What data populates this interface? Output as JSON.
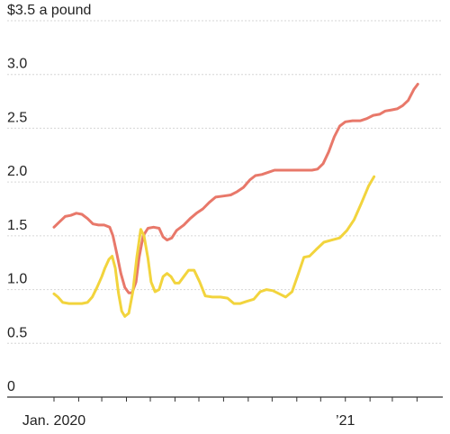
{
  "chart_data": {
    "type": "line",
    "ylim": [
      0,
      3.5
    ],
    "y_ticks": [
      {
        "value": 3.5,
        "label": "$3.5 a pound"
      },
      {
        "value": 3.0,
        "label": "3.0"
      },
      {
        "value": 2.5,
        "label": "2.5"
      },
      {
        "value": 2.0,
        "label": "2.0"
      },
      {
        "value": 1.5,
        "label": "1.5"
      },
      {
        "value": 1.0,
        "label": "1.0"
      },
      {
        "value": 0.5,
        "label": "0.5"
      },
      {
        "value": 0,
        "label": "0"
      }
    ],
    "x_range": [
      "2020-01-01",
      "2021-04-30"
    ],
    "x_ticks": [
      "2020-01-01",
      "2020-02-01",
      "2020-03-01",
      "2020-04-01",
      "2020-05-01",
      "2020-06-01",
      "2020-07-01",
      "2020-08-01",
      "2020-09-01",
      "2020-10-01",
      "2020-11-01",
      "2020-12-01",
      "2021-01-01",
      "2021-02-01",
      "2021-03-01",
      "2021-04-01"
    ],
    "x_labels": [
      {
        "date": "2020-01-01",
        "label": "Jan. 2020"
      },
      {
        "date": "2021-01-01",
        "label": "’21"
      }
    ],
    "grid": true,
    "series": [
      {
        "color": "#e8786a",
        "points": [
          [
            "2020-01-01",
            1.58
          ],
          [
            "2020-01-08",
            1.63
          ],
          [
            "2020-01-15",
            1.68
          ],
          [
            "2020-01-22",
            1.69
          ],
          [
            "2020-01-29",
            1.71
          ],
          [
            "2020-02-05",
            1.7
          ],
          [
            "2020-02-12",
            1.66
          ],
          [
            "2020-02-19",
            1.61
          ],
          [
            "2020-02-26",
            1.6
          ],
          [
            "2020-03-04",
            1.6
          ],
          [
            "2020-03-11",
            1.58
          ],
          [
            "2020-03-15",
            1.5
          ],
          [
            "2020-03-20",
            1.33
          ],
          [
            "2020-03-25",
            1.15
          ],
          [
            "2020-03-30",
            1.02
          ],
          [
            "2020-04-04",
            0.97
          ],
          [
            "2020-04-08",
            0.97
          ],
          [
            "2020-04-13",
            1.07
          ],
          [
            "2020-04-17",
            1.3
          ],
          [
            "2020-04-22",
            1.5
          ],
          [
            "2020-04-28",
            1.57
          ],
          [
            "2020-05-05",
            1.58
          ],
          [
            "2020-05-12",
            1.57
          ],
          [
            "2020-05-17",
            1.49
          ],
          [
            "2020-05-22",
            1.46
          ],
          [
            "2020-05-28",
            1.48
          ],
          [
            "2020-06-03",
            1.55
          ],
          [
            "2020-06-12",
            1.6
          ],
          [
            "2020-06-20",
            1.66
          ],
          [
            "2020-06-28",
            1.71
          ],
          [
            "2020-07-06",
            1.75
          ],
          [
            "2020-07-14",
            1.81
          ],
          [
            "2020-07-22",
            1.86
          ],
          [
            "2020-08-01",
            1.87
          ],
          [
            "2020-08-10",
            1.88
          ],
          [
            "2020-08-18",
            1.91
          ],
          [
            "2020-08-26",
            1.95
          ],
          [
            "2020-09-03",
            2.02
          ],
          [
            "2020-09-10",
            2.06
          ],
          [
            "2020-09-18",
            2.07
          ],
          [
            "2020-09-26",
            2.09
          ],
          [
            "2020-10-04",
            2.11
          ],
          [
            "2020-10-14",
            2.11
          ],
          [
            "2020-10-24",
            2.11
          ],
          [
            "2020-11-03",
            2.11
          ],
          [
            "2020-11-12",
            2.11
          ],
          [
            "2020-11-20",
            2.11
          ],
          [
            "2020-11-27",
            2.12
          ],
          [
            "2020-12-04",
            2.17
          ],
          [
            "2020-12-11",
            2.28
          ],
          [
            "2020-12-18",
            2.42
          ],
          [
            "2020-12-25",
            2.52
          ],
          [
            "2021-01-01",
            2.56
          ],
          [
            "2021-01-10",
            2.57
          ],
          [
            "2021-01-20",
            2.57
          ],
          [
            "2021-01-28",
            2.59
          ],
          [
            "2021-02-05",
            2.62
          ],
          [
            "2021-02-13",
            2.63
          ],
          [
            "2021-02-20",
            2.66
          ],
          [
            "2021-02-28",
            2.67
          ],
          [
            "2021-03-07",
            2.68
          ],
          [
            "2021-03-14",
            2.71
          ],
          [
            "2021-03-21",
            2.76
          ],
          [
            "2021-03-28",
            2.86
          ],
          [
            "2021-04-02",
            2.91
          ]
        ]
      },
      {
        "color": "#f2d43d",
        "points": [
          [
            "2020-01-01",
            0.96
          ],
          [
            "2020-01-06",
            0.93
          ],
          [
            "2020-01-12",
            0.88
          ],
          [
            "2020-01-20",
            0.87
          ],
          [
            "2020-01-28",
            0.87
          ],
          [
            "2020-02-05",
            0.87
          ],
          [
            "2020-02-12",
            0.88
          ],
          [
            "2020-02-18",
            0.93
          ],
          [
            "2020-02-24",
            1.02
          ],
          [
            "2020-03-01",
            1.12
          ],
          [
            "2020-03-05",
            1.2
          ],
          [
            "2020-03-10",
            1.28
          ],
          [
            "2020-03-14",
            1.31
          ],
          [
            "2020-03-18",
            1.2
          ],
          [
            "2020-03-22",
            0.97
          ],
          [
            "2020-03-26",
            0.8
          ],
          [
            "2020-03-30",
            0.75
          ],
          [
            "2020-04-04",
            0.78
          ],
          [
            "2020-04-09",
            0.98
          ],
          [
            "2020-04-14",
            1.3
          ],
          [
            "2020-04-19",
            1.56
          ],
          [
            "2020-04-23",
            1.5
          ],
          [
            "2020-04-28",
            1.29
          ],
          [
            "2020-05-02",
            1.07
          ],
          [
            "2020-05-07",
            0.98
          ],
          [
            "2020-05-12",
            1.0
          ],
          [
            "2020-05-17",
            1.12
          ],
          [
            "2020-05-22",
            1.15
          ],
          [
            "2020-05-27",
            1.12
          ],
          [
            "2020-06-01",
            1.06
          ],
          [
            "2020-06-06",
            1.06
          ],
          [
            "2020-06-12",
            1.12
          ],
          [
            "2020-06-18",
            1.18
          ],
          [
            "2020-06-25",
            1.18
          ],
          [
            "2020-07-02",
            1.07
          ],
          [
            "2020-07-09",
            0.94
          ],
          [
            "2020-07-18",
            0.93
          ],
          [
            "2020-07-28",
            0.93
          ],
          [
            "2020-08-06",
            0.92
          ],
          [
            "2020-08-14",
            0.87
          ],
          [
            "2020-08-22",
            0.87
          ],
          [
            "2020-08-30",
            0.89
          ],
          [
            "2020-09-08",
            0.91
          ],
          [
            "2020-09-16",
            0.98
          ],
          [
            "2020-09-24",
            1.0
          ],
          [
            "2020-10-02",
            0.99
          ],
          [
            "2020-10-10",
            0.96
          ],
          [
            "2020-10-18",
            0.93
          ],
          [
            "2020-10-26",
            0.98
          ],
          [
            "2020-11-03",
            1.15
          ],
          [
            "2020-11-10",
            1.3
          ],
          [
            "2020-11-17",
            1.31
          ],
          [
            "2020-11-25",
            1.37
          ],
          [
            "2020-12-05",
            1.44
          ],
          [
            "2020-12-15",
            1.46
          ],
          [
            "2020-12-25",
            1.48
          ],
          [
            "2021-01-03",
            1.55
          ],
          [
            "2021-01-12",
            1.65
          ],
          [
            "2021-01-21",
            1.8
          ],
          [
            "2021-01-30",
            1.96
          ],
          [
            "2021-02-06",
            2.05
          ]
        ]
      }
    ]
  }
}
